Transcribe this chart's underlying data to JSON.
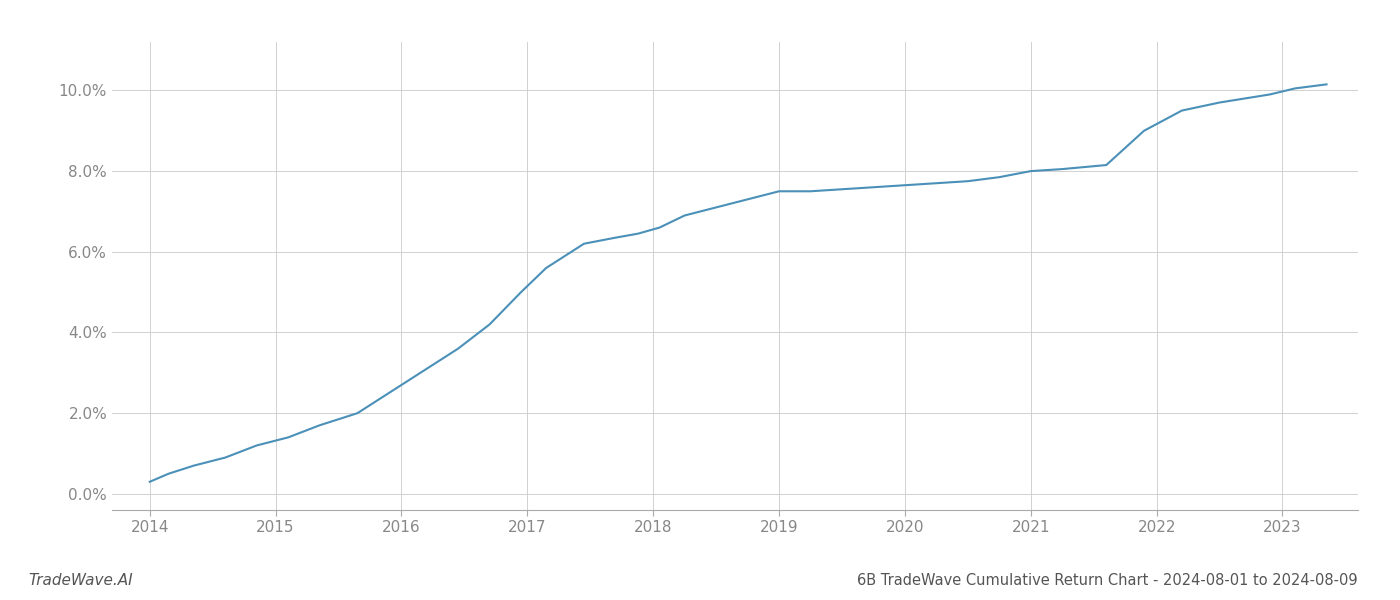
{
  "title": "6B TradeWave Cumulative Return Chart - 2024-08-01 to 2024-08-09",
  "watermark": "TradeWave.AI",
  "line_color": "#4a90b8",
  "background_color": "#ffffff",
  "grid_color": "#cccccc",
  "x_values": [
    2014.0,
    2014.15,
    2014.35,
    2014.6,
    2014.85,
    2015.1,
    2015.35,
    2015.65,
    2015.9,
    2016.15,
    2016.45,
    2016.7,
    2016.95,
    2017.15,
    2017.45,
    2017.7,
    2017.88,
    2018.05,
    2018.25,
    2018.5,
    2018.75,
    2019.0,
    2019.25,
    2019.5,
    2019.75,
    2020.0,
    2020.25,
    2020.5,
    2020.75,
    2021.0,
    2021.25,
    2021.6,
    2021.9,
    2022.2,
    2022.5,
    2022.7,
    2022.9,
    2023.1,
    2023.35
  ],
  "y_values": [
    0.003,
    0.005,
    0.007,
    0.009,
    0.012,
    0.014,
    0.017,
    0.02,
    0.025,
    0.03,
    0.036,
    0.042,
    0.05,
    0.056,
    0.062,
    0.0635,
    0.0645,
    0.066,
    0.069,
    0.071,
    0.073,
    0.075,
    0.075,
    0.0755,
    0.076,
    0.0765,
    0.077,
    0.0775,
    0.0785,
    0.08,
    0.0805,
    0.0815,
    0.09,
    0.095,
    0.097,
    0.098,
    0.099,
    0.1005,
    0.1015
  ],
  "xlim": [
    2013.7,
    2023.6
  ],
  "ylim": [
    -0.004,
    0.112
  ],
  "yticks": [
    0.0,
    0.02,
    0.04,
    0.06,
    0.08,
    0.1
  ],
  "xticks": [
    2014,
    2015,
    2016,
    2017,
    2018,
    2019,
    2020,
    2021,
    2022,
    2023
  ],
  "line_width": 1.5,
  "title_fontsize": 10.5,
  "watermark_fontsize": 11,
  "tick_fontsize": 11,
  "tick_color": "#888888",
  "spine_color": "#aaaaaa"
}
